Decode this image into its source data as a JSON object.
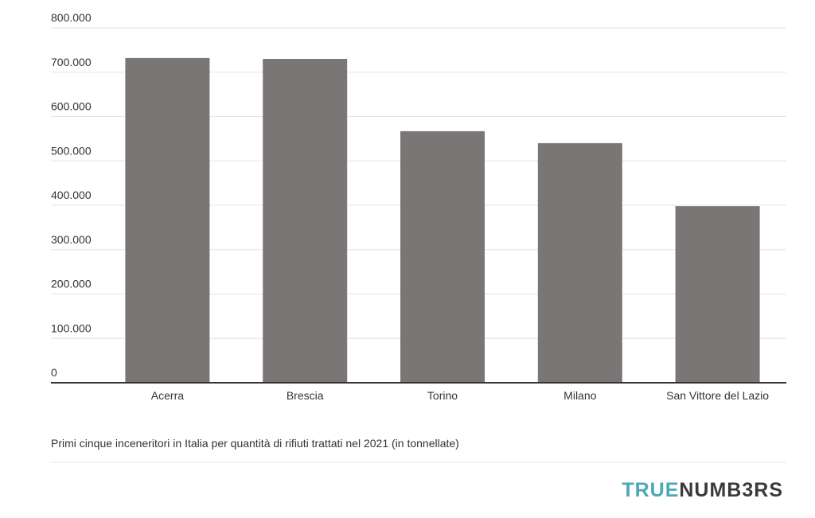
{
  "chart_data": {
    "type": "bar",
    "caption": "Primi cinque inceneritori in Italia per quantità di rifiuti trattati nel 2021 (in tonnellate)",
    "categories": [
      "Acerra",
      "Brescia",
      "Torino",
      "Milano",
      "San Vittore del Lazio"
    ],
    "values": [
      732000,
      730000,
      567000,
      540000,
      398000
    ],
    "color": "#7a7675",
    "ylim": [
      0,
      800000
    ],
    "yticks": [
      0,
      {
        "value": 100000,
        "label": "100.000"
      },
      {
        "value": 200000,
        "label": "200.000"
      },
      {
        "value": 300000,
        "label": "300.000"
      },
      {
        "value": 400000,
        "label": "400.000"
      },
      {
        "value": 500000,
        "label": "500.000"
      },
      {
        "value": 600000,
        "label": "600.000"
      },
      {
        "value": 700000,
        "label": "700.000"
      },
      {
        "value": 800000,
        "label": "800.000"
      }
    ],
    "grid": true
  },
  "logo": {
    "first": "TRUE",
    "second": "NUMB3RS"
  }
}
